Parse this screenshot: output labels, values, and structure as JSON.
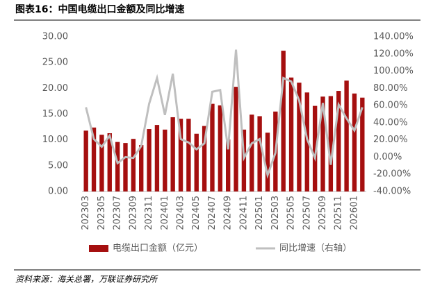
{
  "chart_data": {
    "type": "bar_line",
    "title": "图表16：中国电缆出口金额及同比增速",
    "source": "资料来源：海关总署，万联证券研究所",
    "categories": [
      "202303",
      null,
      "202305",
      null,
      "202307",
      null,
      "202309",
      null,
      "202311",
      null,
      "202401",
      null,
      "202403",
      null,
      "202405",
      null,
      "202407",
      null,
      "202409",
      null,
      "202411",
      null,
      "202501",
      null,
      "202503",
      null,
      "202505",
      null,
      "202507",
      null,
      "202509",
      null,
      "202511",
      null,
      "202601",
      null
    ],
    "series": [
      {
        "name": "电缆出口金额（亿元）",
        "type": "bar",
        "color": "#a50f0f",
        "values": [
          11.8,
          12.4,
          11.0,
          11.3,
          9.6,
          9.4,
          10.2,
          9.0,
          12.1,
          12.9,
          12.0,
          14.4,
          14.1,
          14.1,
          11.2,
          12.7,
          17.0,
          16.7,
          10.1,
          20.3,
          12.0,
          14.9,
          14.6,
          11.4,
          15.5,
          27.3,
          22.1,
          21.1,
          19.2,
          16.6,
          18.4,
          18.5,
          19.5,
          21.5,
          19.0,
          18.2
        ]
      },
      {
        "name": "同比增速（右轴）",
        "type": "line",
        "axis": "y2",
        "color": "#bfbfbf",
        "values": [
          58,
          21,
          12,
          25,
          -7,
          0,
          -1,
          13,
          62,
          92,
          49,
          97,
          21,
          17,
          9,
          16,
          76,
          78,
          9,
          125,
          -1,
          16,
          21,
          -21,
          5,
          92,
          88,
          66,
          21,
          -1,
          63,
          -9,
          61,
          45,
          31,
          58
        ]
      }
    ],
    "ylim": [
      0,
      30
    ],
    "yticks": [
      {
        "value": 0,
        "label": "0.00"
      },
      {
        "value": 5,
        "label": "5.00"
      },
      {
        "value": 10,
        "label": "10.00"
      },
      {
        "value": 15,
        "label": "15.00"
      },
      {
        "value": 20,
        "label": "20.00"
      },
      {
        "value": 25,
        "label": "25.00"
      },
      {
        "value": 30,
        "label": "30.00"
      }
    ],
    "y2lim": [
      -40,
      140
    ],
    "y2ticks": [
      {
        "value": -40,
        "label": "-40.00%"
      },
      {
        "value": -20,
        "label": "-20.00%"
      },
      {
        "value": 0,
        "label": "0.00%"
      },
      {
        "value": 20,
        "label": "20.00%"
      },
      {
        "value": 40,
        "label": "40.00%"
      },
      {
        "value": 60,
        "label": "60.00%"
      },
      {
        "value": 80,
        "label": "80.00%"
      },
      {
        "value": 100,
        "label": "100.00%"
      },
      {
        "value": 120,
        "label": "120.00%"
      },
      {
        "value": 140,
        "label": "140.00%"
      }
    ],
    "legend": "bottom"
  }
}
